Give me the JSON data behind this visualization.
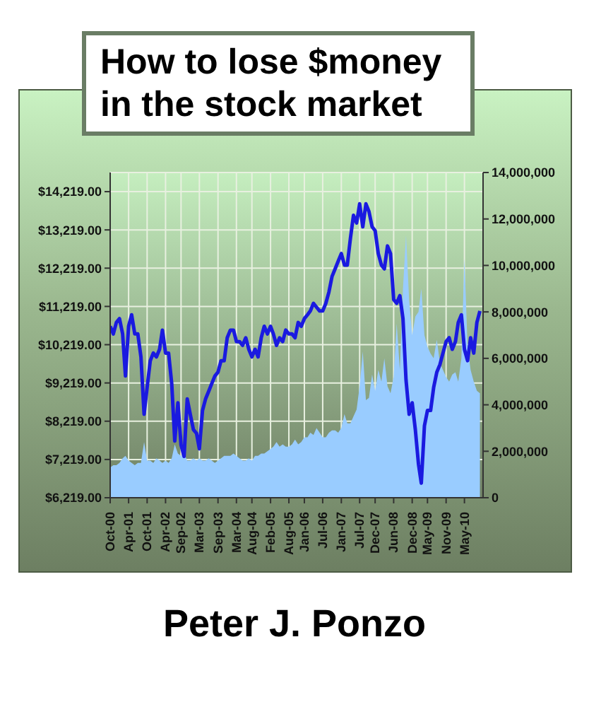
{
  "chart_data": {
    "type": "line",
    "title": "How to lose $money in the stock market",
    "annotations": [
      "Peter J. Ponzo"
    ],
    "x": [
      "2000-10",
      "2000-11",
      "2000-12",
      "2001-01",
      "2001-02",
      "2001-03",
      "2001-04",
      "2001-05",
      "2001-06",
      "2001-07",
      "2001-08",
      "2001-09",
      "2001-10",
      "2001-11",
      "2001-12",
      "2002-01",
      "2002-02",
      "2002-03",
      "2002-04",
      "2002-05",
      "2002-06",
      "2002-07",
      "2002-08",
      "2002-09",
      "2002-10",
      "2002-11",
      "2002-12",
      "2003-01",
      "2003-02",
      "2003-03",
      "2003-04",
      "2003-05",
      "2003-06",
      "2003-07",
      "2003-08",
      "2003-09",
      "2003-10",
      "2003-11",
      "2003-12",
      "2004-01",
      "2004-02",
      "2004-03",
      "2004-04",
      "2004-05",
      "2004-06",
      "2004-07",
      "2004-08",
      "2004-09",
      "2004-10",
      "2004-11",
      "2004-12",
      "2005-01",
      "2005-02",
      "2005-03",
      "2005-04",
      "2005-05",
      "2005-06",
      "2005-07",
      "2005-08",
      "2005-09",
      "2005-10",
      "2005-11",
      "2005-12",
      "2006-01",
      "2006-02",
      "2006-03",
      "2006-04",
      "2006-05",
      "2006-06",
      "2006-07",
      "2006-08",
      "2006-09",
      "2006-10",
      "2006-11",
      "2006-12",
      "2007-01",
      "2007-02",
      "2007-03",
      "2007-04",
      "2007-05",
      "2007-06",
      "2007-07",
      "2007-08",
      "2007-09",
      "2007-10",
      "2007-11",
      "2007-12",
      "2008-01",
      "2008-02",
      "2008-03",
      "2008-04",
      "2008-05",
      "2008-06",
      "2008-07",
      "2008-08",
      "2008-09",
      "2008-10",
      "2008-11",
      "2008-12",
      "2009-01",
      "2009-02",
      "2009-03",
      "2009-04",
      "2009-05",
      "2009-06",
      "2009-07",
      "2009-08",
      "2009-09",
      "2009-10",
      "2009-11",
      "2009-12",
      "2010-01",
      "2010-02",
      "2010-03",
      "2010-04",
      "2010-05",
      "2010-06",
      "2010-07",
      "2010-08",
      "2010-09",
      "2010-10"
    ],
    "series": [
      {
        "type": "area",
        "axis": "y2",
        "color": "#99ccff",
        "values": [
          1300000,
          1400000,
          1400000,
          1500000,
          1700000,
          1800000,
          1600000,
          1500000,
          1400000,
          1500000,
          1500000,
          2400000,
          1600000,
          1600000,
          1500000,
          1700000,
          1600000,
          1500000,
          1600000,
          1500000,
          1700000,
          2300000,
          1900000,
          1800000,
          1900000,
          1600000,
          1600000,
          1700000,
          1600000,
          1700000,
          1600000,
          1600000,
          1700000,
          1600000,
          1500000,
          1600000,
          1700000,
          1800000,
          1800000,
          1800000,
          1900000,
          1800000,
          1700000,
          1600000,
          1600000,
          1700000,
          1600000,
          1800000,
          1800000,
          1900000,
          1900000,
          2000000,
          2100000,
          2200000,
          2400000,
          2200000,
          2300000,
          2200000,
          2200000,
          2300000,
          2500000,
          2300000,
          2400000,
          2600000,
          2600000,
          2800000,
          2700000,
          3000000,
          2800000,
          2600000,
          2600000,
          2800000,
          2900000,
          2900000,
          2800000,
          3000000,
          3600000,
          3200000,
          3200000,
          3500000,
          3800000,
          4800000,
          6300000,
          4200000,
          4300000,
          5300000,
          4600000,
          5500000,
          5000000,
          6000000,
          4800000,
          4500000,
          5200000,
          7500000,
          5500000,
          9000000,
          11300000,
          8500000,
          7000000,
          7800000,
          8000000,
          9000000,
          7000000,
          6500000,
          6200000,
          6000000,
          6800000,
          5800000,
          5500000,
          5200000,
          5000000,
          5300000,
          5400000,
          5000000,
          6000000,
          10300000,
          6500000,
          5500000,
          5000000,
          4600000,
          4500000
        ]
      },
      {
        "color": "#1a1ae0",
        "values": [
          10700,
          10500,
          10800,
          10900,
          10500,
          9400,
          10700,
          11000,
          10500,
          10500,
          9900,
          8400,
          9100,
          9800,
          10000,
          9900,
          10100,
          10600,
          10000,
          10000,
          9200,
          7700,
          8700,
          7600,
          7300,
          8800,
          8400,
          8000,
          7900,
          7500,
          8500,
          8800,
          9000,
          9200,
          9400,
          9500,
          9800,
          9800,
          10400,
          10600,
          10600,
          10300,
          10300,
          10200,
          10400,
          10100,
          9900,
          10100,
          9900,
          10400,
          10700,
          10500,
          10700,
          10500,
          10200,
          10400,
          10300,
          10600,
          10500,
          10500,
          10400,
          10800,
          10700,
          10900,
          11000,
          11100,
          11300,
          11200,
          11100,
          11100,
          11300,
          11600,
          12000,
          12200,
          12400,
          12600,
          12300,
          12300,
          13000,
          13600,
          13400,
          13900,
          13300,
          13900,
          13700,
          13300,
          13200,
          12600,
          12300,
          12200,
          12800,
          12600,
          11400,
          11300,
          11500,
          10900,
          9300,
          8400,
          8700,
          8000,
          7100,
          6600,
          8100,
          8500,
          8500,
          9100,
          9500,
          9700,
          10000,
          10300,
          10400,
          10100,
          10300,
          10800,
          11000,
          10100,
          9800,
          10400,
          10000,
          10800,
          11100
        ]
      }
    ],
    "xlim": [
      "2000-10",
      "2010-11"
    ],
    "xticks": [
      {
        "value": "2000-10",
        "label": "Oct-00"
      },
      {
        "value": "2001-04",
        "label": "Apr-01"
      },
      {
        "value": "2001-10",
        "label": "Oct-01"
      },
      {
        "value": "2002-04",
        "label": "Apr-02"
      },
      {
        "value": "2002-09",
        "label": "Sep-02"
      },
      {
        "value": "2003-03",
        "label": "Mar-03"
      },
      {
        "value": "2003-09",
        "label": "Sep-03"
      },
      {
        "value": "2004-03",
        "label": "Mar-04"
      },
      {
        "value": "2004-08",
        "label": "Aug-04"
      },
      {
        "value": "2005-02",
        "label": "Feb-05"
      },
      {
        "value": "2005-08",
        "label": "Aug-05"
      },
      {
        "value": "2006-01",
        "label": "Jan-06"
      },
      {
        "value": "2006-07",
        "label": "Jul-06"
      },
      {
        "value": "2007-01",
        "label": "Jan-07"
      },
      {
        "value": "2007-07",
        "label": "Jul-07"
      },
      {
        "value": "2007-12",
        "label": "Dec-07"
      },
      {
        "value": "2008-06",
        "label": "Jun-08"
      },
      {
        "value": "2008-12",
        "label": "Dec-08"
      },
      {
        "value": "2009-05",
        "label": "May-09"
      },
      {
        "value": "2009-11",
        "label": "Nov-09"
      },
      {
        "value": "2010-05",
        "label": "May-10"
      }
    ],
    "ylim": [
      6219,
      14719
    ],
    "yticks": [
      {
        "value": 6219,
        "label": "$6,219.00"
      },
      {
        "value": 7219,
        "label": "$7,219.00"
      },
      {
        "value": 8219,
        "label": "$8,219.00"
      },
      {
        "value": 9219,
        "label": "$9,219.00"
      },
      {
        "value": 10219,
        "label": "$10,219.00"
      },
      {
        "value": 11219,
        "label": "$11,219.00"
      },
      {
        "value": 12219,
        "label": "$12,219.00"
      },
      {
        "value": 13219,
        "label": "$13,219.00"
      },
      {
        "value": 14219,
        "label": "$14,219.00"
      }
    ],
    "y2lim": [
      0,
      14000000
    ],
    "y2ticks": [
      {
        "value": 0,
        "label": "0"
      },
      {
        "value": 2000000,
        "label": "2,000,000"
      },
      {
        "value": 4000000,
        "label": "4,000,000"
      },
      {
        "value": 6000000,
        "label": "6,000,000"
      },
      {
        "value": 8000000,
        "label": "8,000,000"
      },
      {
        "value": 10000000,
        "label": "10,000,000"
      },
      {
        "value": 12000000,
        "label": "12,000,000"
      },
      {
        "value": 14000000,
        "label": "14,000,000"
      }
    ],
    "grid": true
  }
}
